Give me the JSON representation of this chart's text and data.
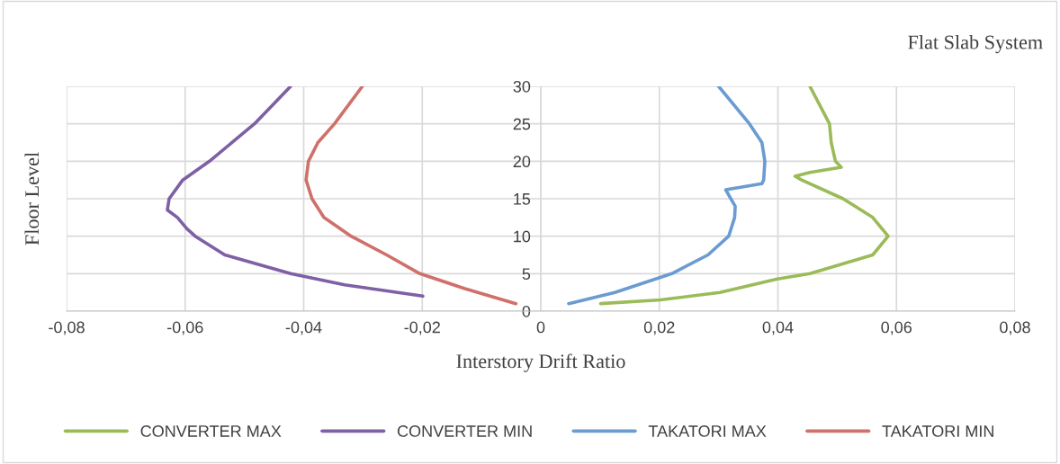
{
  "chart_data": {
    "type": "line",
    "title": "Flat Slab System",
    "xlabel": "Interstory Drift Ratio",
    "ylabel": "Floor Level",
    "xlim": [
      -0.08,
      0.08
    ],
    "xticks": [
      {
        "value": -0.08,
        "label": "-0,08"
      },
      {
        "value": -0.06,
        "label": "-0,06"
      },
      {
        "value": -0.04,
        "label": "-0,04"
      },
      {
        "value": -0.02,
        "label": "-0,02"
      },
      0,
      {
        "value": 0.02,
        "label": "0,02"
      },
      {
        "value": 0.04,
        "label": "0,04"
      },
      {
        "value": 0.06,
        "label": "0,06"
      },
      {
        "value": 0.08,
        "label": "0,08"
      }
    ],
    "ylim": [
      0,
      30
    ],
    "yticks": [
      0,
      5,
      10,
      15,
      20,
      25,
      30
    ],
    "grid": true,
    "legend": "bottom",
    "marker": "none",
    "line_style": "solid",
    "series": [
      {
        "name": "CONVERTER MAX",
        "color": "#9bbb59",
        "x": [
          0.0101,
          0.0202,
          0.0302,
          0.0399,
          0.0454,
          0.056,
          0.0586,
          0.056,
          0.051,
          0.044,
          0.0429,
          0.0454,
          0.0507,
          0.0497,
          0.049,
          0.0487,
          0.0454
        ],
        "values": [
          1,
          1.5,
          2.5,
          4.3,
          5,
          7.5,
          10,
          12.5,
          15,
          17.5,
          18,
          18.5,
          19.2,
          20,
          22.5,
          25,
          30
        ]
      },
      {
        "name": "CONVERTER MIN",
        "color": "#7f5fa5",
        "x": [
          -0.0199,
          -0.0331,
          -0.0422,
          -0.0533,
          -0.0583,
          -0.0597,
          -0.0613,
          -0.063,
          -0.0627,
          -0.0604,
          -0.0559,
          -0.0483,
          -0.0422
        ],
        "values": [
          2,
          3.5,
          5,
          7.5,
          10,
          11,
          12.5,
          13.5,
          15,
          17.5,
          20,
          25,
          30
        ]
      },
      {
        "name": "TAKATORI MAX",
        "color": "#6a9bd1",
        "x": [
          0.0047,
          0.0125,
          0.0221,
          0.0282,
          0.0317,
          0.0327,
          0.0328,
          0.0317,
          0.0312,
          0.0373,
          0.0376,
          0.0378,
          0.0373,
          0.0352,
          0.03
        ],
        "values": [
          1,
          2.5,
          5,
          7.5,
          10,
          12.5,
          14,
          15.5,
          16.2,
          17,
          17.5,
          20,
          22.5,
          25,
          30
        ]
      },
      {
        "name": "TAKATORI MIN",
        "color": "#d0706a",
        "x": [
          -0.0042,
          -0.0128,
          -0.0204,
          -0.026,
          -0.032,
          -0.0366,
          -0.0386,
          -0.0396,
          -0.0392,
          -0.0376,
          -0.0348,
          -0.0301
        ],
        "values": [
          1,
          3,
          5,
          7.5,
          10,
          12.5,
          15,
          17.5,
          20,
          22.5,
          25,
          30
        ]
      }
    ]
  }
}
